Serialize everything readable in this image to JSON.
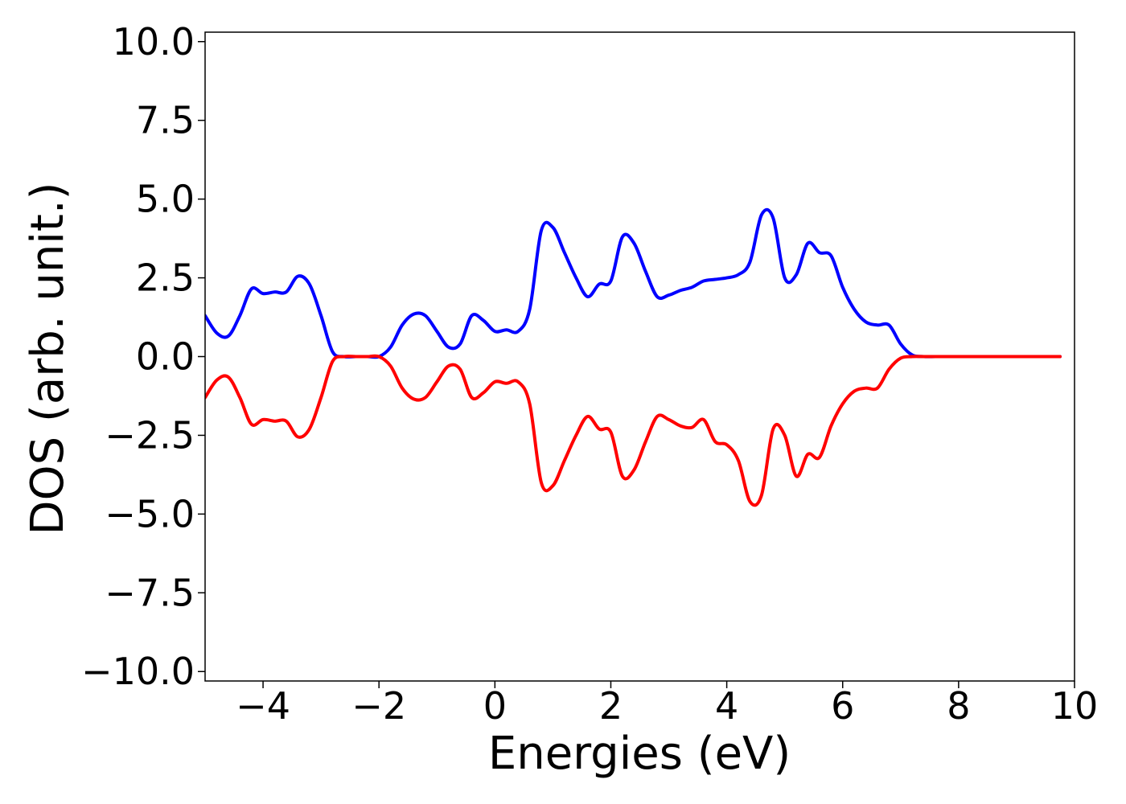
{
  "chart_data": {
    "type": "line",
    "title": "",
    "xlabel": "Energies (eV)",
    "ylabel": "DOS (arb. unit.)",
    "xlim": [
      -5.0,
      10.0
    ],
    "ylim": [
      -10.3,
      10.3
    ],
    "x_ticks": [
      -4,
      -2,
      0,
      2,
      4,
      6,
      8,
      10
    ],
    "x_tick_labels": [
      "−4",
      "−2",
      "0",
      "2",
      "4",
      "6",
      "8",
      "10"
    ],
    "y_ticks": [
      -10.0,
      -7.5,
      -5.0,
      -2.5,
      0.0,
      2.5,
      5.0,
      7.5,
      10.0
    ],
    "y_tick_labels": [
      "−10.0",
      "−7.5",
      "−5.0",
      "−2.5",
      "0.0",
      "2.5",
      "5.0",
      "7.5",
      "10.0"
    ],
    "grid": false,
    "legend": "none",
    "x": [
      -5.0,
      -4.8,
      -4.6,
      -4.4,
      -4.2,
      -4.0,
      -3.8,
      -3.6,
      -3.4,
      -3.2,
      -3.0,
      -2.8,
      -2.6,
      -2.4,
      -2.2,
      -2.0,
      -1.8,
      -1.6,
      -1.4,
      -1.2,
      -1.0,
      -0.8,
      -0.6,
      -0.4,
      -0.2,
      0.0,
      0.2,
      0.4,
      0.6,
      0.8,
      1.0,
      1.2,
      1.4,
      1.6,
      1.8,
      2.0,
      2.2,
      2.4,
      2.6,
      2.8,
      3.0,
      3.2,
      3.4,
      3.6,
      3.8,
      4.0,
      4.2,
      4.4,
      4.6,
      4.8,
      5.0,
      5.2,
      5.4,
      5.6,
      5.8,
      6.0,
      6.2,
      6.4,
      6.6,
      6.8,
      7.0,
      7.2,
      7.4,
      7.6,
      7.8,
      8.0,
      8.2,
      8.4,
      8.6,
      8.8,
      9.0,
      9.2,
      9.4,
      9.6,
      9.75
    ],
    "series": [
      {
        "color": "#0000ff",
        "values": [
          1.3,
          0.75,
          0.65,
          1.3,
          2.15,
          2.0,
          2.05,
          2.05,
          2.55,
          2.3,
          1.3,
          0.15,
          0.0,
          0.0,
          0.0,
          0.0,
          0.3,
          1.0,
          1.35,
          1.3,
          0.8,
          0.3,
          0.4,
          1.3,
          1.15,
          0.8,
          0.85,
          0.8,
          1.5,
          4.0,
          4.1,
          3.3,
          2.5,
          1.9,
          2.3,
          2.4,
          3.8,
          3.6,
          2.7,
          1.9,
          1.95,
          2.1,
          2.2,
          2.4,
          2.45,
          2.5,
          2.6,
          3.0,
          4.5,
          4.4,
          2.5,
          2.6,
          3.6,
          3.3,
          3.2,
          2.2,
          1.5,
          1.1,
          1.0,
          1.0,
          0.4,
          0.05,
          0.0,
          0.0,
          0.0,
          0.0,
          0.0,
          0.0,
          0.0,
          0.0,
          0.0,
          0.0,
          0.0,
          0.0,
          0.0
        ]
      },
      {
        "color": "#ff0000",
        "values": [
          -1.3,
          -0.75,
          -0.65,
          -1.3,
          -2.15,
          -2.0,
          -2.05,
          -2.05,
          -2.55,
          -2.3,
          -1.3,
          -0.15,
          0.0,
          0.0,
          0.0,
          0.0,
          -0.3,
          -1.0,
          -1.35,
          -1.3,
          -0.8,
          -0.3,
          -0.4,
          -1.3,
          -1.15,
          -0.8,
          -0.85,
          -0.8,
          -1.5,
          -4.0,
          -4.1,
          -3.3,
          -2.5,
          -1.9,
          -2.3,
          -2.4,
          -3.8,
          -3.6,
          -2.7,
          -1.9,
          -2.0,
          -2.2,
          -2.25,
          -2.0,
          -2.7,
          -2.8,
          -3.3,
          -4.6,
          -4.4,
          -2.3,
          -2.5,
          -3.8,
          -3.1,
          -3.2,
          -2.2,
          -1.5,
          -1.1,
          -1.0,
          -1.0,
          -0.4,
          -0.05,
          0.0,
          0.0,
          0.0,
          0.0,
          0.0,
          0.0,
          0.0,
          0.0,
          0.0,
          0.0,
          0.0,
          0.0,
          0.0,
          0.0
        ]
      }
    ]
  }
}
